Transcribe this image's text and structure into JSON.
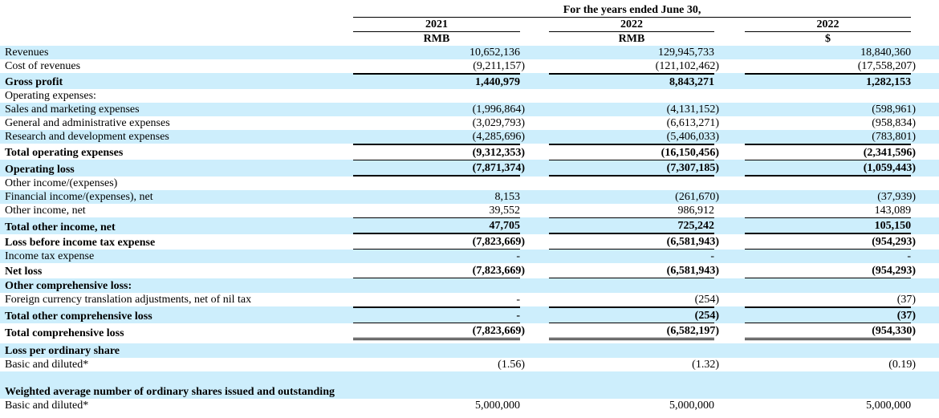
{
  "header": {
    "period": "For the years ended June 30,",
    "columns": [
      {
        "year": "2021",
        "currency": "RMB"
      },
      {
        "year": "2022",
        "currency": "RMB"
      },
      {
        "year": "2022",
        "currency": "$"
      }
    ]
  },
  "highlight_color": "#cdeefc",
  "rows": [
    {
      "label": "Revenues",
      "values": [
        "10,652,136",
        "129,945,733",
        "18,840,360"
      ]
    },
    {
      "label": "Cost of revenues",
      "values": [
        "(9,211,157)",
        "(121,102,462)",
        "(17,558,207)"
      ]
    },
    {
      "label": "Gross profit",
      "values": [
        "1,440,979",
        "8,843,271",
        "1,282,153"
      ]
    },
    {
      "label": "Operating expenses:",
      "values": [
        "",
        "",
        ""
      ]
    },
    {
      "label": "Sales and marketing expenses",
      "values": [
        "(1,996,864)",
        "(4,131,152)",
        "(598,961)"
      ]
    },
    {
      "label": "General and administrative expenses",
      "values": [
        "(3,029,793)",
        "(6,613,271)",
        "(958,834)"
      ]
    },
    {
      "label": "Research and development expenses",
      "values": [
        "(4,285,696)",
        "(5,406,033)",
        "(783,801)"
      ]
    },
    {
      "label": "Total operating expenses",
      "values": [
        "(9,312,353)",
        "(16,150,456)",
        "(2,341,596)"
      ]
    },
    {
      "label": "Operating loss",
      "values": [
        "(7,871,374)",
        "(7,307,185)",
        "(1,059,443)"
      ]
    },
    {
      "label": "Other income/(expenses)",
      "values": [
        "",
        "",
        ""
      ]
    },
    {
      "label": "Financial income/(expenses), net",
      "values": [
        "8,153",
        "(261,670)",
        "(37,939)"
      ]
    },
    {
      "label": "Other income, net",
      "values": [
        "39,552",
        "986,912",
        "143,089"
      ]
    },
    {
      "label": "Total other income, net",
      "values": [
        "47,705",
        "725,242",
        "105,150"
      ]
    },
    {
      "label": "Loss before income tax expense",
      "values": [
        "(7,823,669)",
        "(6,581,943)",
        "(954,293)"
      ]
    },
    {
      "label": "Income tax expense",
      "values": [
        "-",
        "-",
        "-"
      ]
    },
    {
      "label": "Net loss",
      "values": [
        "(7,823,669)",
        "(6,581,943)",
        "(954,293)"
      ]
    },
    {
      "label": "Other comprehensive loss:",
      "values": [
        "",
        "",
        ""
      ]
    },
    {
      "label": "Foreign currency translation adjustments, net of nil tax",
      "values": [
        "-",
        "(254)",
        "(37)"
      ]
    },
    {
      "label": "Total other comprehensive loss",
      "values": [
        "-",
        "(254)",
        "(37)"
      ]
    },
    {
      "label": "Total comprehensive loss",
      "values": [
        "(7,823,669)",
        "(6,582,197)",
        "(954,330)"
      ]
    },
    {
      "label": "Loss per ordinary share",
      "values": [
        "",
        "",
        ""
      ]
    },
    {
      "label": "Basic and diluted*",
      "values": [
        "(1.56)",
        "(1.32)",
        "(0.19)"
      ]
    },
    {
      "label": "Weighted average number of ordinary shares issued and outstanding",
      "values": [
        "",
        "",
        ""
      ]
    },
    {
      "label": "Basic and diluted*",
      "values": [
        "5,000,000",
        "5,000,000",
        "5,000,000"
      ]
    }
  ]
}
